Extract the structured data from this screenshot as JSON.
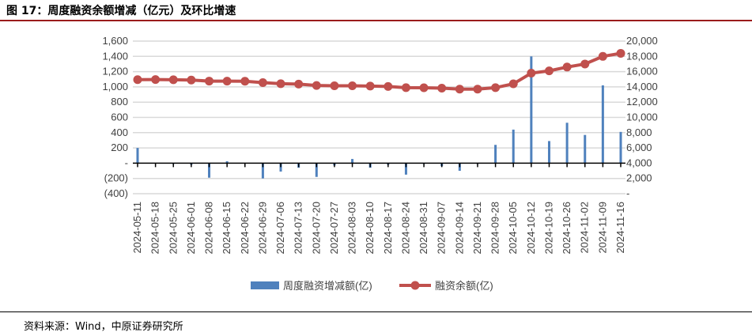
{
  "title": "图 17：周度融资余额增减（亿元）及环比增速",
  "source": "资料来源：Wind，中原证券研究所",
  "colors": {
    "bar": "#4f81bd",
    "line": "#c0504d",
    "title_rule": "#9b1c1c"
  },
  "chart_data": {
    "type": "bar+line",
    "categories": [
      "2024-05-11",
      "2024-05-18",
      "2024-05-25",
      "2024-06-01",
      "2024-06-08",
      "2024-06-15",
      "2024-06-22",
      "2024-06-29",
      "2024-07-06",
      "2024-07-13",
      "2024-07-20",
      "2024-07-27",
      "2024-08-03",
      "2024-08-10",
      "2024-08-17",
      "2024-08-24",
      "2024-08-31",
      "2024-09-07",
      "2024-09-14",
      "2024-09-21",
      "2024-09-28",
      "2024-10-05",
      "2024-10-12",
      "2024-10-19",
      "2024-10-26",
      "2024-11-02",
      "2024-11-09",
      "2024-11-16"
    ],
    "series": [
      {
        "name": "周度融资增减额(亿)",
        "type": "bar",
        "axis": "left",
        "values": [
          200,
          0,
          -10,
          -20,
          -190,
          25,
          -5,
          -200,
          -110,
          -60,
          -180,
          -30,
          55,
          -60,
          -20,
          -150,
          -10,
          -40,
          -100,
          -10,
          240,
          440,
          1400,
          290,
          530,
          370,
          1020,
          410
        ]
      },
      {
        "name": "融资余额(亿)",
        "type": "line",
        "axis": "right",
        "values": [
          14950,
          14960,
          14940,
          14900,
          14760,
          14750,
          14740,
          14560,
          14420,
          14370,
          14180,
          14150,
          14150,
          14110,
          14050,
          13900,
          13890,
          13830,
          13700,
          13700,
          13900,
          14400,
          15800,
          16100,
          16600,
          17000,
          18000,
          18400
        ]
      }
    ],
    "left_axis": {
      "ylim": [
        -400,
        1600
      ],
      "ticks": [
        "(400)",
        "(200)",
        "-",
        "200",
        "400",
        "600",
        "800",
        "1,000",
        "1,200",
        "1,400",
        "1,600"
      ]
    },
    "right_axis": {
      "ylim": [
        0,
        20000
      ],
      "ticks": [
        "-",
        "2,000",
        "4,000",
        "6,000",
        "8,000",
        "10,000",
        "12,000",
        "14,000",
        "16,000",
        "18,000",
        "20,000"
      ]
    },
    "grid": true,
    "legend": "bottom"
  }
}
